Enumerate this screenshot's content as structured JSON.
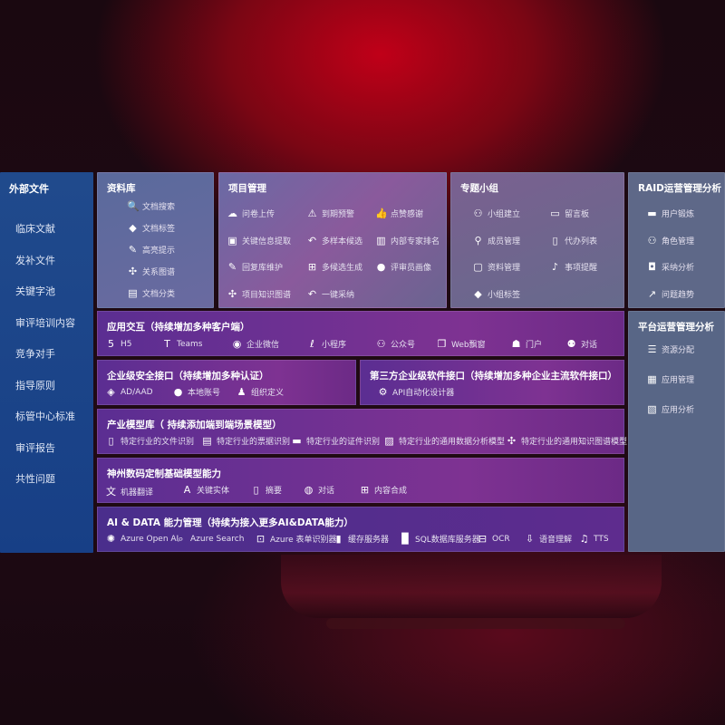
{
  "left_panel": {
    "title": "外部文件",
    "items": [
      "临床文献",
      "发补文件",
      "关键字池",
      "审评培训内容",
      "竞争对手",
      "指导原则",
      "标管中心标准",
      "审评报告",
      "共性问题"
    ]
  },
  "library": {
    "title": "资料库",
    "items": [
      {
        "label": "文档搜索",
        "icon": "doc-search-icon"
      },
      {
        "label": "文档标签",
        "icon": "tag-icon"
      },
      {
        "label": "高亮提示",
        "icon": "pen-icon"
      },
      {
        "label": "关系图谱",
        "icon": "graph-icon"
      },
      {
        "label": "文档分类",
        "icon": "doc-list-icon"
      }
    ]
  },
  "project": {
    "title": "项目管理",
    "items": [
      {
        "label": "问卷上传",
        "icon": "cloud-upload-icon"
      },
      {
        "label": "到期预警",
        "icon": "alarm-icon"
      },
      {
        "label": "点赞感谢",
        "icon": "thumbs-up-icon"
      },
      {
        "label": "关键信息提取",
        "icon": "browser-icon"
      },
      {
        "label": "多样本候选",
        "icon": "reply-icon"
      },
      {
        "label": "内部专家排名",
        "icon": "ranking-icon"
      },
      {
        "label": "回复库维护",
        "icon": "edit-icon"
      },
      {
        "label": "多候选生成",
        "icon": "puzzle-icon"
      },
      {
        "label": "评审员画像",
        "icon": "user-icon"
      },
      {
        "label": "项目知识图谱",
        "icon": "graph-icon"
      },
      {
        "label": "一键采纳",
        "icon": "reply-icon"
      }
    ]
  },
  "group": {
    "title": "专题小组",
    "items": [
      {
        "label": "小组建立",
        "icon": "users-icon"
      },
      {
        "label": "留言板",
        "icon": "bbs-icon"
      },
      {
        "label": "成员管理",
        "icon": "user-add-icon"
      },
      {
        "label": "代办列表",
        "icon": "clipboard-icon"
      },
      {
        "label": "资料管理",
        "icon": "folder-icon"
      },
      {
        "label": "事项提醒",
        "icon": "bell-icon"
      },
      {
        "label": "小组标签",
        "icon": "tag-icon"
      }
    ]
  },
  "raid": {
    "title": "RAID运营管理分析",
    "items": [
      {
        "label": "用户锻炼",
        "icon": "id-card-icon"
      },
      {
        "label": "角色管理",
        "icon": "users-icon"
      },
      {
        "label": "采纳分析",
        "icon": "qa-icon"
      },
      {
        "label": "问题趋势",
        "icon": "trend-icon"
      }
    ]
  },
  "platform": {
    "title": "平台运营管理分析",
    "items": [
      {
        "label": "资源分配",
        "icon": "checklist-icon"
      },
      {
        "label": "应用管理",
        "icon": "apps-icon"
      },
      {
        "label": "应用分析",
        "icon": "analysis-icon"
      }
    ]
  },
  "app_interaction": {
    "title": "应用交互（持续增加多种客户端）",
    "items": [
      {
        "label": "H5",
        "icon": "html5-icon"
      },
      {
        "label": "Teams",
        "icon": "teams-icon"
      },
      {
        "label": "企业微信",
        "icon": "wechat-icon"
      },
      {
        "label": "小程序",
        "icon": "miniprogram-icon"
      },
      {
        "label": "公众号",
        "icon": "users-icon"
      },
      {
        "label": "Web飘窗",
        "icon": "window-icon"
      },
      {
        "label": "门户",
        "icon": "portal-icon"
      },
      {
        "label": "对话",
        "icon": "chat-users-icon"
      }
    ]
  },
  "security": {
    "title": "企业级安全接口（持续增加多种认证）",
    "items": [
      {
        "label": "AD/AAD",
        "icon": "diamond-icon"
      },
      {
        "label": "本地账号",
        "icon": "user-icon"
      },
      {
        "label": "组织定义",
        "icon": "org-icon"
      }
    ]
  },
  "third_party": {
    "title": "第三方企业级软件接口（持续增加多种企业主流软件接口）",
    "items": [
      {
        "label": "API自动化设计器",
        "icon": "gear-icon"
      }
    ]
  },
  "industry": {
    "title": "产业模型库（ 持续添加端到端场景模型）",
    "items": [
      {
        "label": "特定行业的文件识别",
        "icon": "file-icon"
      },
      {
        "label": "特定行业的票据识别",
        "icon": "receipt-icon"
      },
      {
        "label": "特定行业的证件识别",
        "icon": "id-card-icon"
      },
      {
        "label": "特定行业的通用数据分析模型",
        "icon": "chart-icon"
      },
      {
        "label": "特定行业的通用知识图谱模型",
        "icon": "graph-icon"
      }
    ]
  },
  "base_model": {
    "title": "神州数码定制基础模型能力",
    "items": [
      {
        "label": "机器翻译",
        "icon": "translate-icon"
      },
      {
        "label": "关键实体",
        "icon": "entity-icon"
      },
      {
        "label": "摘要",
        "icon": "summary-icon"
      },
      {
        "label": "对话",
        "icon": "chat-icon"
      },
      {
        "label": "内容合成",
        "icon": "puzzle-icon"
      }
    ]
  },
  "ai_data": {
    "title": "AI & DATA 能力管理（持续为接入更多AI&DATA能力）",
    "items": [
      {
        "label": "Azure Open AI",
        "icon": "openai-icon"
      },
      {
        "label": "Azure Search",
        "icon": "search-icon"
      },
      {
        "label": "Azure 表单识别器",
        "icon": "form-icon"
      },
      {
        "label": "缓存服务器",
        "icon": "cache-icon"
      },
      {
        "label": "SQL数据库服务器",
        "icon": "database-icon"
      },
      {
        "label": "OCR",
        "icon": "ocr-icon"
      },
      {
        "label": "语音理解",
        "icon": "speech-icon"
      },
      {
        "label": "TTS",
        "icon": "tts-icon"
      }
    ]
  }
}
